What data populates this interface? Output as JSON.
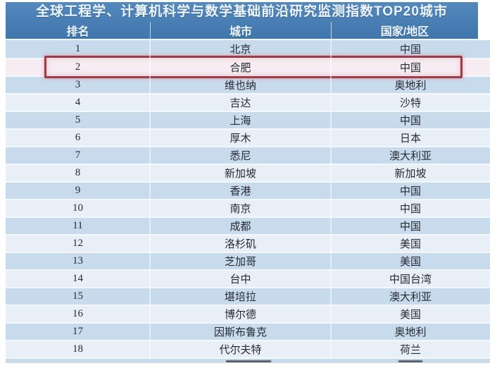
{
  "title": "全球工程学、计算机科学与数学基础前沿研究监测指数TOP20城市",
  "chart_data": {
    "type": "table",
    "title": "全球工程学、计算机科学与数学基础前沿研究监测指数TOP20城市",
    "columns": [
      "排名",
      "城市",
      "国家/地区"
    ],
    "rows": [
      {
        "rank": "1",
        "city": "北京",
        "country": "中国",
        "highlighted": false
      },
      {
        "rank": "2",
        "city": "合肥",
        "country": "中国",
        "highlighted": true
      },
      {
        "rank": "3",
        "city": "维也纳",
        "country": "奥地利",
        "highlighted": false
      },
      {
        "rank": "4",
        "city": "吉达",
        "country": "沙特",
        "highlighted": false
      },
      {
        "rank": "5",
        "city": "上海",
        "country": "中国",
        "highlighted": false
      },
      {
        "rank": "6",
        "city": "厚木",
        "country": "日本",
        "highlighted": false
      },
      {
        "rank": "7",
        "city": "悉尼",
        "country": "澳大利亚",
        "highlighted": false
      },
      {
        "rank": "8",
        "city": "新加坡",
        "country": "新加坡",
        "highlighted": false
      },
      {
        "rank": "9",
        "city": "香港",
        "country": "中国",
        "highlighted": false
      },
      {
        "rank": "10",
        "city": "南京",
        "country": "中国",
        "highlighted": false
      },
      {
        "rank": "11",
        "city": "成都",
        "country": "中国",
        "highlighted": false
      },
      {
        "rank": "12",
        "city": "洛杉矶",
        "country": "美国",
        "highlighted": false
      },
      {
        "rank": "13",
        "city": "芝加哥",
        "country": "美国",
        "highlighted": false
      },
      {
        "rank": "14",
        "city": "台中",
        "country": "中国台湾",
        "highlighted": false
      },
      {
        "rank": "15",
        "city": "堪培拉",
        "country": "澳大利亚",
        "highlighted": false
      },
      {
        "rank": "16",
        "city": "博尔德",
        "country": "美国",
        "highlighted": false
      },
      {
        "rank": "17",
        "city": "因斯布鲁克",
        "country": "奥地利",
        "highlighted": false
      },
      {
        "rank": "18",
        "city": "代尔夫特",
        "country": "荷兰",
        "highlighted": false
      }
    ],
    "highlighted_rank": "2",
    "partial_row_visible": true,
    "layout": {
      "grid": "alternating-row-bands",
      "legend": "none"
    }
  },
  "colors": {
    "header_bg": "#4a80b4",
    "header_text": "#edf4fa",
    "row_dark": "#c7dbec",
    "row_light": "#e8eff7",
    "highlight_row_bg": "#f6ecf1",
    "highlight_border": "#9c3c46",
    "body_text": "#262a33"
  }
}
